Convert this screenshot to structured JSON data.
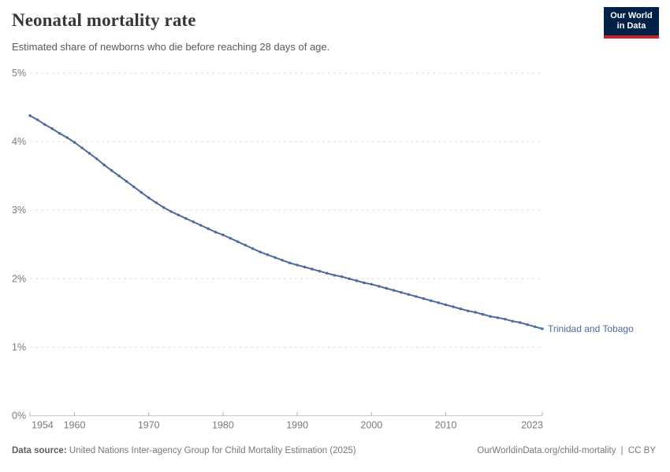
{
  "header": {
    "title": "Neonatal mortality rate",
    "subtitle": "Estimated share of newborns who die before reaching 28 days of age.",
    "logo": {
      "line1": "Our World",
      "line2": "in Data",
      "bg_color": "#002147",
      "accent_color": "#cf2127"
    }
  },
  "chart_data": {
    "type": "line",
    "title": "Neonatal mortality rate",
    "subtitle": "Estimated share of newborns who die before reaching 28 days of age.",
    "unit": "%",
    "grid": "horizontal-dashed",
    "legend_position": "end-of-line-label",
    "xlabel": "",
    "ylabel": "",
    "xlim": [
      1954,
      2023
    ],
    "ylim": [
      0,
      5
    ],
    "x_ticks": [
      1954,
      1960,
      1970,
      1980,
      1990,
      2000,
      2010,
      2023
    ],
    "y_ticks": [
      0,
      1,
      2,
      3,
      4,
      5
    ],
    "y_tick_labels": [
      "0%",
      "1%",
      "2%",
      "3%",
      "4%",
      "5%"
    ],
    "line_color": "#4c6a9c",
    "x": [
      1954,
      1955,
      1956,
      1957,
      1958,
      1959,
      1960,
      1961,
      1962,
      1963,
      1964,
      1965,
      1966,
      1967,
      1968,
      1969,
      1970,
      1971,
      1972,
      1973,
      1974,
      1975,
      1976,
      1977,
      1978,
      1979,
      1980,
      1981,
      1982,
      1983,
      1984,
      1985,
      1986,
      1987,
      1988,
      1989,
      1990,
      1991,
      1992,
      1993,
      1994,
      1995,
      1996,
      1997,
      1998,
      1999,
      2000,
      2001,
      2002,
      2003,
      2004,
      2005,
      2006,
      2007,
      2008,
      2009,
      2010,
      2011,
      2012,
      2013,
      2014,
      2015,
      2016,
      2017,
      2018,
      2019,
      2020,
      2021,
      2022,
      2023
    ],
    "series": [
      {
        "name": "Trinidad and Tobago",
        "color": "#4c6a9c",
        "values": [
          4.38,
          4.32,
          4.25,
          4.19,
          4.12,
          4.06,
          3.99,
          3.91,
          3.83,
          3.75,
          3.66,
          3.58,
          3.5,
          3.42,
          3.34,
          3.26,
          3.18,
          3.11,
          3.04,
          2.98,
          2.93,
          2.88,
          2.83,
          2.78,
          2.73,
          2.68,
          2.64,
          2.59,
          2.54,
          2.49,
          2.44,
          2.39,
          2.35,
          2.31,
          2.27,
          2.23,
          2.2,
          2.17,
          2.14,
          2.11,
          2.08,
          2.05,
          2.03,
          2.0,
          1.97,
          1.94,
          1.92,
          1.89,
          1.86,
          1.83,
          1.8,
          1.77,
          1.74,
          1.71,
          1.68,
          1.65,
          1.62,
          1.59,
          1.56,
          1.53,
          1.51,
          1.48,
          1.45,
          1.43,
          1.41,
          1.38,
          1.36,
          1.33,
          1.3,
          1.27
        ]
      }
    ]
  },
  "footer": {
    "source_label": "Data source:",
    "source_text": "United Nations Inter-agency Group for Child Mortality Estimation (2025)",
    "link_text": "OurWorldinData.org/child-mortality",
    "separator": "|",
    "license_text": "CC BY"
  }
}
